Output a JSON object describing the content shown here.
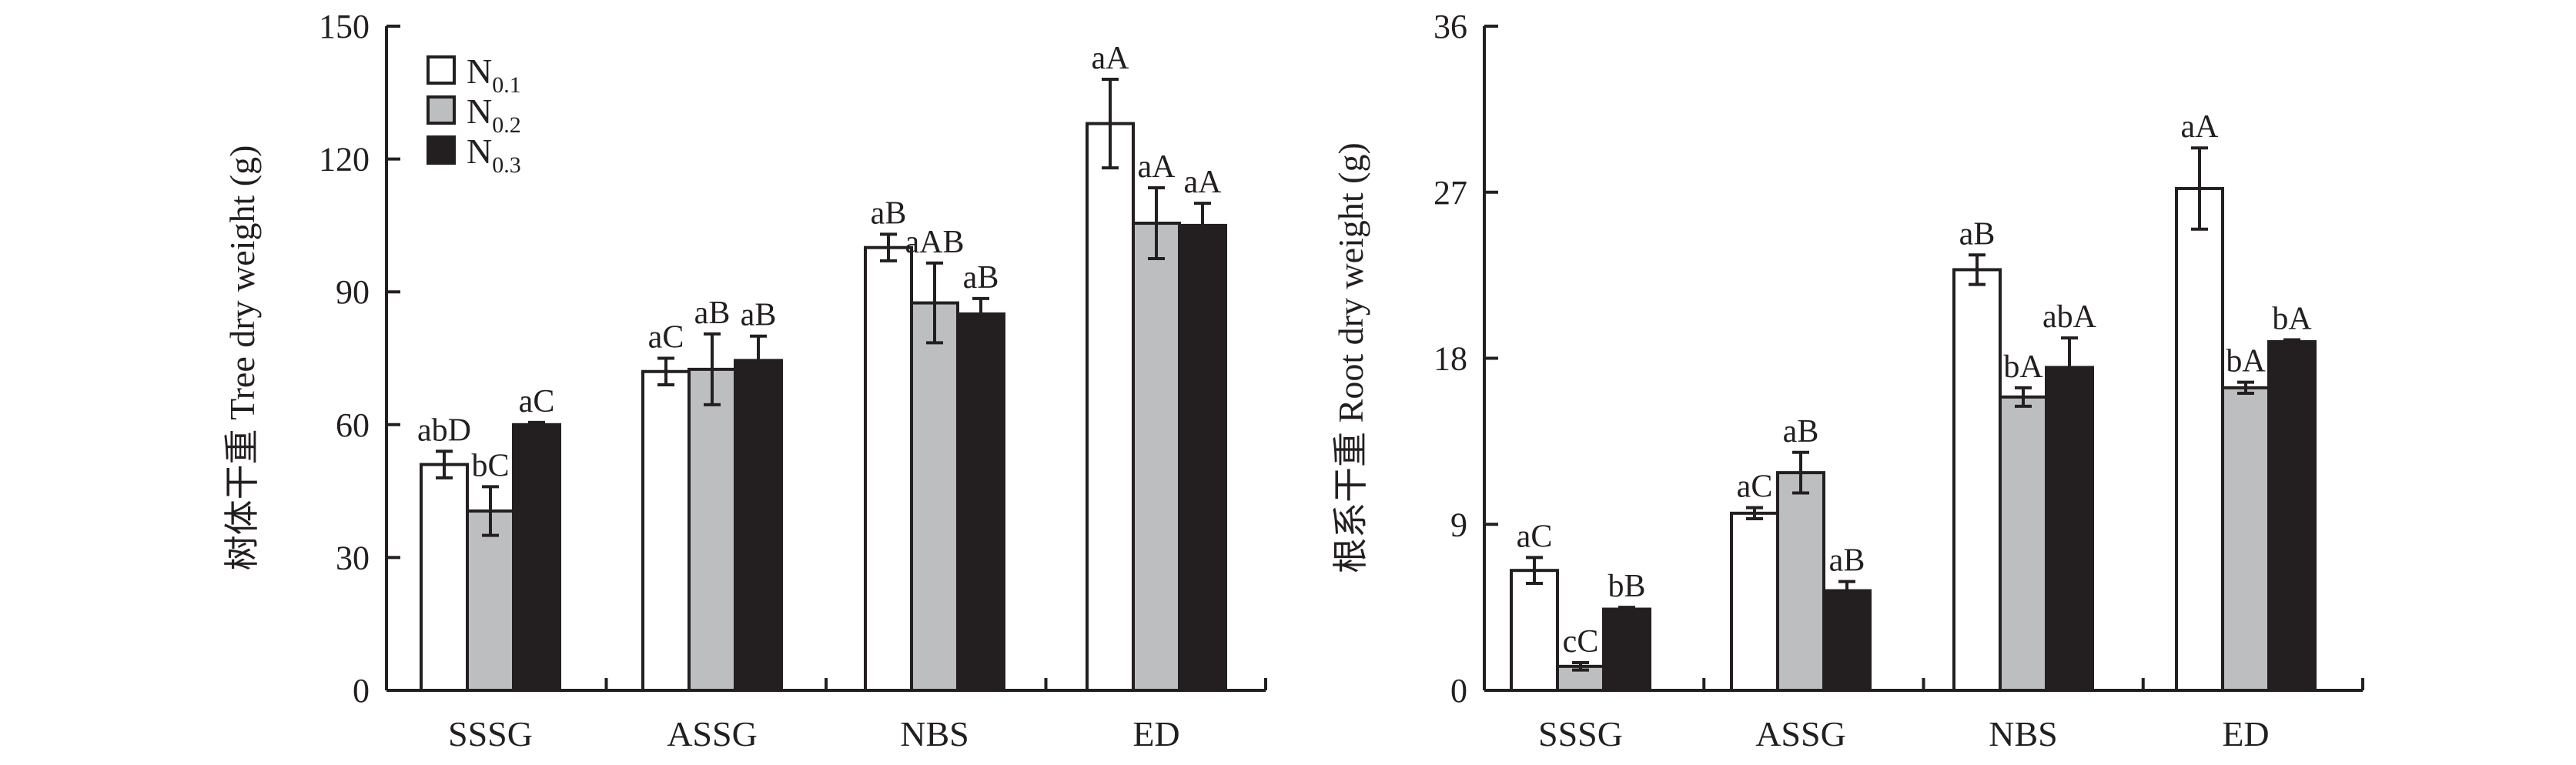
{
  "chart_data": [
    {
      "type": "bar",
      "ylabel": "树体干重 Tree dry weight (g)",
      "xlabel": "",
      "ylim": [
        0,
        150
      ],
      "yticks": [
        0,
        30,
        60,
        90,
        120,
        150
      ],
      "categories": [
        "SSSG",
        "ASSG",
        "NBS",
        "ED"
      ],
      "legend": {
        "placement": "top-left",
        "entries": [
          {
            "base": "N",
            "sub": "0.1"
          },
          {
            "base": "N",
            "sub": "0.2"
          },
          {
            "base": "N",
            "sub": "0.3"
          }
        ]
      },
      "series": [
        {
          "name": "N0.1",
          "color": "#ffffff",
          "values": [
            51,
            72,
            100,
            128
          ],
          "errors": [
            3,
            3,
            3,
            10
          ],
          "labels": [
            "abD",
            "aC",
            "aB",
            "aA"
          ]
        },
        {
          "name": "N0.2",
          "color": "#bcbec0",
          "values": [
            40.5,
            72.5,
            87.5,
            105.5
          ],
          "errors": [
            5.5,
            8,
            9,
            8
          ],
          "labels": [
            "bC",
            "aB",
            "aAB",
            "aA"
          ]
        },
        {
          "name": "N0.3",
          "color": "#231f20",
          "values": [
            60,
            74.5,
            85,
            105
          ],
          "errors": [
            0.5,
            5.5,
            3.5,
            5
          ],
          "labels": [
            "aC",
            "aB",
            "aB",
            "aA"
          ]
        }
      ]
    },
    {
      "type": "bar",
      "ylabel": "根系干重 Root dry weight (g)",
      "xlabel": "",
      "ylim": [
        0,
        36
      ],
      "yticks": [
        0,
        9,
        18,
        27,
        36
      ],
      "categories": [
        "SSSG",
        "ASSG",
        "NBS",
        "ED"
      ],
      "series": [
        {
          "name": "N0.1",
          "color": "#ffffff",
          "values": [
            6.5,
            9.6,
            22.8,
            27.2
          ],
          "errors": [
            0.7,
            0.3,
            0.8,
            2.2
          ],
          "labels": [
            "aC",
            "aC",
            "aB",
            "aA"
          ]
        },
        {
          "name": "N0.2",
          "color": "#bcbec0",
          "values": [
            1.3,
            11.8,
            15.9,
            16.4
          ],
          "errors": [
            0.2,
            1.1,
            0.5,
            0.3
          ],
          "labels": [
            "cC",
            "aB",
            "bA",
            "bA"
          ]
        },
        {
          "name": "N0.3",
          "color": "#231f20",
          "values": [
            4.4,
            5.4,
            17.5,
            18.9
          ],
          "errors": [
            0.1,
            0.5,
            1.6,
            0.1
          ],
          "labels": [
            "bB",
            "aB",
            "abA",
            "bA"
          ]
        }
      ]
    }
  ]
}
